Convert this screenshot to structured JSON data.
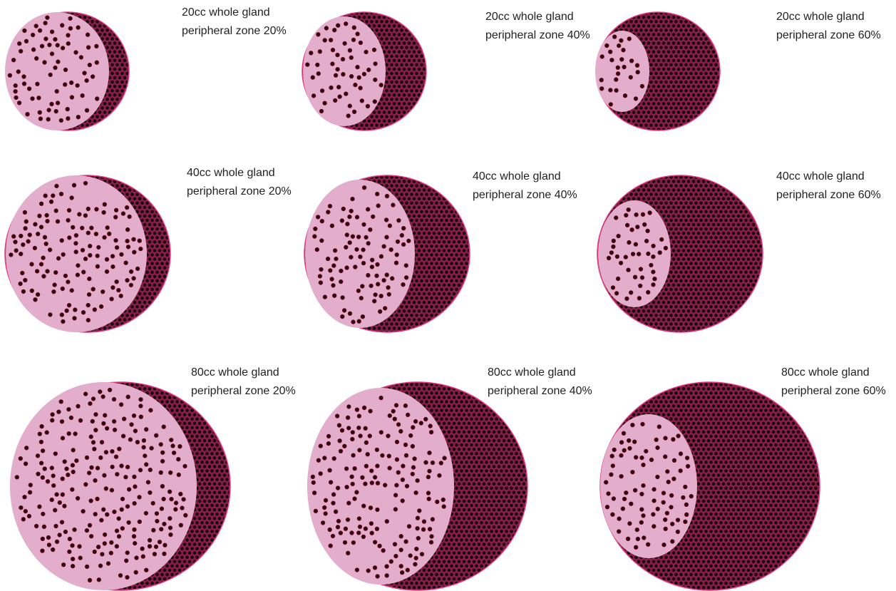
{
  "colors": {
    "whole_gland_fill": "#8c1f4a",
    "whole_gland_dots": "#1a0a0f",
    "whole_gland_outline": "#e43a86",
    "peripheral_fill": "#e2aecb",
    "peripheral_dots": "#2a0009",
    "peripheral_dot_ring": "#7a0f2c"
  },
  "panels": [
    {
      "gland_volume": "20cc",
      "pz_percent": 20,
      "label_line1": "20cc whole gland",
      "label_line2": "peripheral zone 20%"
    },
    {
      "gland_volume": "20cc",
      "pz_percent": 40,
      "label_line1": "20cc whole gland",
      "label_line2": "peripheral zone 40%"
    },
    {
      "gland_volume": "20cc",
      "pz_percent": 60,
      "label_line1": "20cc whole gland",
      "label_line2": "peripheral zone 60%"
    },
    {
      "gland_volume": "40cc",
      "pz_percent": 20,
      "label_line1": "40cc whole gland",
      "label_line2": "peripheral zone 20%"
    },
    {
      "gland_volume": "40cc",
      "pz_percent": 40,
      "label_line1": "40cc whole gland",
      "label_line2": "peripheral zone 40%"
    },
    {
      "gland_volume": "40cc",
      "pz_percent": 60,
      "label_line1": "40cc whole gland",
      "label_line2": "peripheral zone 60%"
    },
    {
      "gland_volume": "80cc",
      "pz_percent": 20,
      "label_line1": "80cc whole gland",
      "label_line2": "peripheral zone 20%"
    },
    {
      "gland_volume": "80cc",
      "pz_percent": 40,
      "label_line1": "80cc whole gland",
      "label_line2": "peripheral zone 40%"
    },
    {
      "gland_volume": "80cc",
      "pz_percent": 60,
      "label_line1": "80cc whole gland",
      "label_line2": "peripheral zone 60%"
    }
  ]
}
